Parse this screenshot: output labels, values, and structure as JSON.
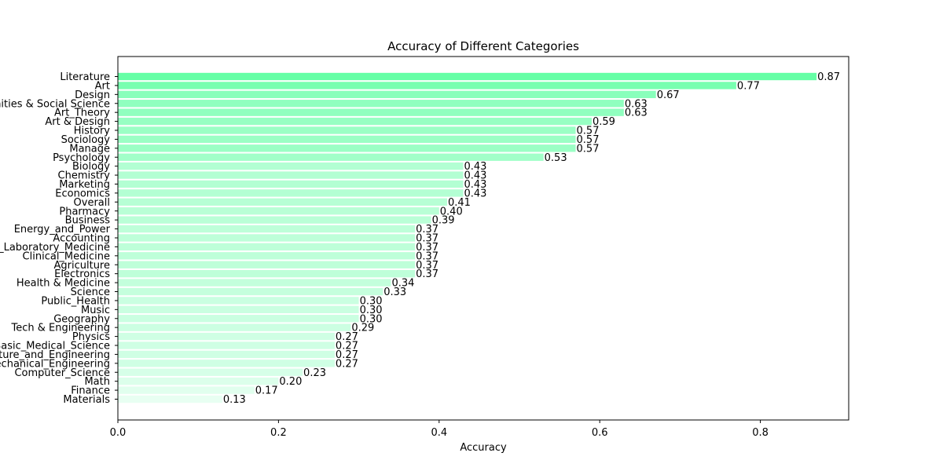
{
  "chart_data": {
    "type": "bar",
    "orientation": "horizontal",
    "title": "Accuracy of Different Categories",
    "xlabel": "Accuracy",
    "ylabel": "",
    "xlim": [
      0,
      0.91
    ],
    "xticks": [
      "0.0",
      "0.2",
      "0.4",
      "0.6",
      "0.8"
    ],
    "grid": false,
    "colors": {
      "high": "#66ffa6",
      "low": "#e8fff2",
      "axis": "#000000"
    },
    "categories": [
      "Literature",
      "Art",
      "Design",
      "Humanities & Social Science",
      "Art_Theory",
      "Art & Design",
      "History",
      "Sociology",
      "Manage",
      "Psychology",
      "Biology",
      "Chemistry",
      "Marketing",
      "Economics",
      "Overall",
      "Pharmacy",
      "Business",
      "Energy_and_Power",
      "Accounting",
      "Diagnostics_and_Laboratory_Medicine",
      "Clinical_Medicine",
      "Agriculture",
      "Electronics",
      "Health & Medicine",
      "Science",
      "Public_Health",
      "Music",
      "Geography",
      "Tech & Engineering",
      "Physics",
      "Basic_Medical_Science",
      "Architecture_and_Engineering",
      "Mechanical_Engineering",
      "Computer_Science",
      "Math",
      "Finance",
      "Materials"
    ],
    "values": [
      0.87,
      0.77,
      0.67,
      0.63,
      0.63,
      0.59,
      0.57,
      0.57,
      0.57,
      0.53,
      0.43,
      0.43,
      0.43,
      0.43,
      0.41,
      0.4,
      0.39,
      0.37,
      0.37,
      0.37,
      0.37,
      0.37,
      0.37,
      0.34,
      0.33,
      0.3,
      0.3,
      0.3,
      0.29,
      0.27,
      0.27,
      0.27,
      0.27,
      0.23,
      0.2,
      0.17,
      0.13
    ],
    "value_labels": [
      "0.87",
      "0.77",
      "0.67",
      "0.63",
      "0.63",
      "0.59",
      "0.57",
      "0.57",
      "0.57",
      "0.53",
      "0.43",
      "0.43",
      "0.43",
      "0.43",
      "0.41",
      "0.40",
      "0.39",
      "0.37",
      "0.37",
      "0.37",
      "0.37",
      "0.37",
      "0.37",
      "0.34",
      "0.33",
      "0.30",
      "0.30",
      "0.30",
      "0.29",
      "0.27",
      "0.27",
      "0.27",
      "0.27",
      "0.23",
      "0.20",
      "0.17",
      "0.13"
    ]
  }
}
